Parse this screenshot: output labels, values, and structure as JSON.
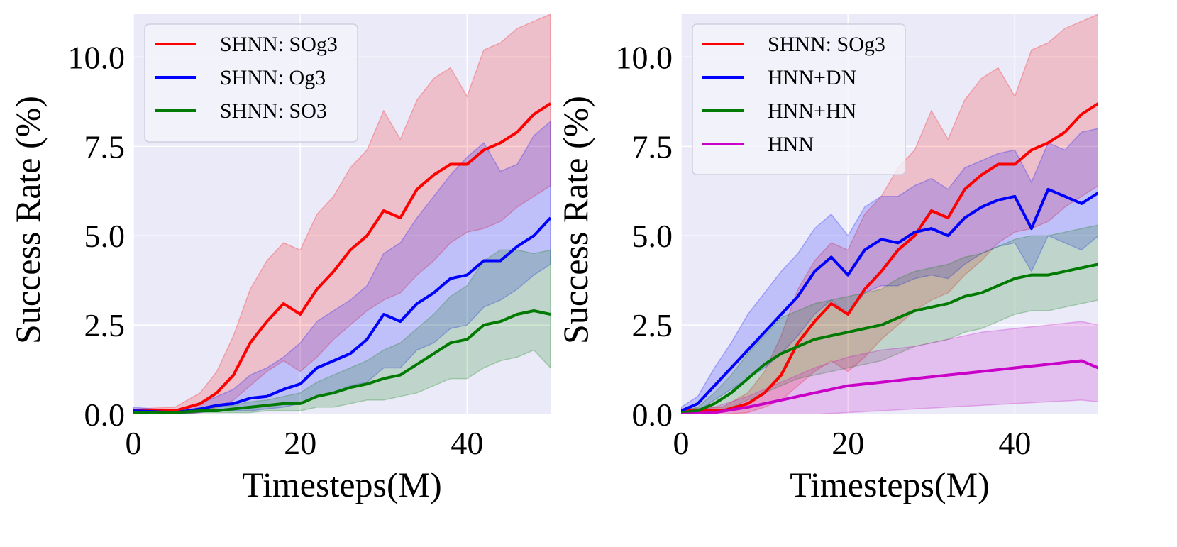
{
  "colors": {
    "plot_bg": "#eaeaf8",
    "grid": "#ffffff",
    "legend_bg": "#f4f4fb",
    "legend_border": "#cfcfe0",
    "red": "#ff0000",
    "blue": "#0000ff",
    "green": "#007a00",
    "magenta": "#c800c8"
  },
  "chart_data": [
    {
      "type": "line",
      "xlabel": "Timesteps(M)",
      "ylabel": "Success Rate (%)",
      "xlim": [
        0,
        50
      ],
      "ylim": [
        0,
        11.2
      ],
      "xticks": [
        0,
        20,
        40
      ],
      "xtick_labels": [
        "0",
        "20",
        "40"
      ],
      "yticks": [
        0,
        2.5,
        5,
        7.5,
        10
      ],
      "ytick_labels": [
        "0.0",
        "2.5",
        "5.0",
        "7.5",
        "10.0"
      ],
      "grid": true,
      "legend_position": "top-left",
      "series": [
        {
          "name": "SHNN: SOg3",
          "color": "#ff0000",
          "x": [
            0,
            5,
            8,
            10,
            12,
            14,
            16,
            18,
            20,
            22,
            24,
            26,
            28,
            30,
            32,
            34,
            36,
            38,
            40,
            42,
            44,
            46,
            48,
            50
          ],
          "mean": [
            0.1,
            0.1,
            0.3,
            0.6,
            1.1,
            2.0,
            2.6,
            3.1,
            2.8,
            3.5,
            4.0,
            4.6,
            5.0,
            5.7,
            5.5,
            6.3,
            6.7,
            7.0,
            7.0,
            7.4,
            7.6,
            7.9,
            8.4,
            8.7
          ],
          "upper": [
            0.15,
            0.2,
            0.6,
            1.2,
            2.2,
            3.5,
            4.3,
            4.8,
            4.6,
            5.6,
            6.1,
            6.9,
            7.4,
            8.5,
            7.7,
            8.8,
            9.4,
            9.7,
            8.9,
            10.2,
            10.4,
            10.8,
            11.0,
            11.2
          ],
          "lower": [
            0.05,
            0.0,
            0.05,
            0.2,
            0.4,
            0.8,
            1.2,
            1.5,
            1.2,
            1.6,
            2.1,
            2.5,
            2.9,
            3.2,
            3.4,
            3.9,
            4.3,
            4.8,
            5.1,
            5.2,
            5.4,
            5.8,
            6.1,
            6.4
          ]
        },
        {
          "name": "SHNN: Og3",
          "color": "#0000ff",
          "x": [
            0,
            5,
            8,
            10,
            12,
            14,
            16,
            18,
            20,
            22,
            24,
            26,
            28,
            30,
            32,
            34,
            36,
            38,
            40,
            42,
            44,
            46,
            48,
            50
          ],
          "mean": [
            0.1,
            0.05,
            0.15,
            0.25,
            0.3,
            0.45,
            0.5,
            0.7,
            0.85,
            1.3,
            1.5,
            1.7,
            2.1,
            2.8,
            2.6,
            3.1,
            3.4,
            3.8,
            3.9,
            4.3,
            4.3,
            4.7,
            5.0,
            5.5
          ],
          "upper": [
            0.2,
            0.1,
            0.3,
            0.5,
            0.7,
            1.1,
            1.3,
            1.6,
            2.0,
            2.6,
            2.9,
            3.2,
            3.6,
            4.5,
            4.8,
            5.5,
            6.1,
            6.7,
            7.2,
            7.6,
            6.8,
            7.0,
            7.8,
            8.2
          ],
          "lower": [
            0.0,
            0.0,
            0.05,
            0.1,
            0.1,
            0.1,
            0.15,
            0.2,
            0.3,
            0.5,
            0.6,
            0.8,
            0.9,
            1.3,
            1.3,
            1.8,
            2.0,
            2.4,
            2.5,
            3.0,
            3.2,
            3.5,
            3.9,
            4.2
          ]
        },
        {
          "name": "SHNN: SO3",
          "color": "#007a00",
          "x": [
            0,
            5,
            8,
            10,
            12,
            14,
            16,
            18,
            20,
            22,
            24,
            26,
            28,
            30,
            32,
            34,
            36,
            38,
            40,
            42,
            44,
            46,
            48,
            50
          ],
          "mean": [
            0.05,
            0.05,
            0.1,
            0.1,
            0.15,
            0.2,
            0.25,
            0.3,
            0.3,
            0.5,
            0.6,
            0.75,
            0.85,
            1.0,
            1.1,
            1.4,
            1.7,
            2.0,
            2.1,
            2.5,
            2.6,
            2.8,
            2.9,
            2.8
          ],
          "upper": [
            0.1,
            0.1,
            0.15,
            0.2,
            0.25,
            0.35,
            0.4,
            0.5,
            0.6,
            0.9,
            1.1,
            1.3,
            1.5,
            1.8,
            2.0,
            2.4,
            2.8,
            3.3,
            3.6,
            4.3,
            4.6,
            4.6,
            4.5,
            4.6
          ],
          "lower": [
            0.0,
            0.0,
            0.05,
            0.05,
            0.05,
            0.05,
            0.1,
            0.1,
            0.1,
            0.2,
            0.2,
            0.3,
            0.4,
            0.4,
            0.5,
            0.6,
            0.8,
            1.0,
            1.0,
            1.3,
            1.5,
            1.6,
            1.8,
            1.3
          ]
        }
      ]
    },
    {
      "type": "line",
      "xlabel": "Timesteps(M)",
      "ylabel": "Success Rate (%)",
      "xlim": [
        0,
        50
      ],
      "ylim": [
        0,
        11.2
      ],
      "xticks": [
        0,
        20,
        40
      ],
      "xtick_labels": [
        "0",
        "20",
        "40"
      ],
      "yticks": [
        0,
        2.5,
        5,
        7.5,
        10
      ],
      "ytick_labels": [
        "0.0",
        "2.5",
        "5.0",
        "7.5",
        "10.0"
      ],
      "grid": true,
      "legend_position": "top-left",
      "series": [
        {
          "name": "SHNN: SOg3",
          "color": "#ff0000",
          "x": [
            0,
            5,
            8,
            10,
            12,
            14,
            16,
            18,
            20,
            22,
            24,
            26,
            28,
            30,
            32,
            34,
            36,
            38,
            40,
            42,
            44,
            46,
            48,
            50
          ],
          "mean": [
            0.1,
            0.1,
            0.3,
            0.6,
            1.1,
            2.0,
            2.6,
            3.1,
            2.8,
            3.5,
            4.0,
            4.6,
            5.0,
            5.7,
            5.5,
            6.3,
            6.7,
            7.0,
            7.0,
            7.4,
            7.6,
            7.9,
            8.4,
            8.7
          ],
          "upper": [
            0.15,
            0.2,
            0.6,
            1.2,
            2.2,
            3.5,
            4.3,
            4.8,
            4.6,
            5.6,
            6.1,
            6.9,
            7.4,
            8.5,
            7.7,
            8.8,
            9.4,
            9.7,
            8.9,
            10.2,
            10.4,
            10.8,
            11.0,
            11.2
          ],
          "lower": [
            0.05,
            0.0,
            0.05,
            0.2,
            0.4,
            0.8,
            1.2,
            1.5,
            1.2,
            1.6,
            2.1,
            2.5,
            2.9,
            3.2,
            3.4,
            3.9,
            4.3,
            4.8,
            5.1,
            5.2,
            5.4,
            5.8,
            6.1,
            6.4
          ]
        },
        {
          "name": "HNN+DN",
          "color": "#0000ff",
          "x": [
            0,
            2,
            4,
            6,
            8,
            10,
            12,
            14,
            16,
            18,
            20,
            22,
            24,
            26,
            28,
            30,
            32,
            34,
            36,
            38,
            40,
            42,
            44,
            46,
            48,
            50
          ],
          "mean": [
            0.1,
            0.3,
            0.8,
            1.3,
            1.8,
            2.3,
            2.8,
            3.3,
            4.0,
            4.4,
            3.9,
            4.6,
            4.9,
            4.8,
            5.1,
            5.2,
            5.0,
            5.5,
            5.8,
            6.0,
            6.1,
            5.2,
            6.3,
            6.1,
            5.9,
            6.2
          ],
          "upper": [
            0.2,
            0.5,
            1.3,
            2.0,
            2.8,
            3.4,
            4.0,
            4.5,
            5.2,
            5.6,
            5.0,
            5.8,
            6.1,
            6.1,
            6.4,
            6.6,
            6.3,
            6.9,
            7.1,
            7.3,
            7.4,
            6.5,
            7.6,
            7.4,
            7.9,
            8.0
          ],
          "lower": [
            0.05,
            0.1,
            0.4,
            0.7,
            1.0,
            1.3,
            1.7,
            2.2,
            2.8,
            3.2,
            2.8,
            3.4,
            3.6,
            3.6,
            3.8,
            3.9,
            3.8,
            4.2,
            4.5,
            4.7,
            4.8,
            4.0,
            5.0,
            4.8,
            4.6,
            5.0
          ]
        },
        {
          "name": "HNN+HN",
          "color": "#007a00",
          "x": [
            0,
            2,
            4,
            6,
            8,
            10,
            12,
            14,
            16,
            18,
            20,
            22,
            24,
            26,
            28,
            30,
            32,
            34,
            36,
            38,
            40,
            42,
            44,
            46,
            48,
            50
          ],
          "mean": [
            0.05,
            0.1,
            0.3,
            0.6,
            1.0,
            1.4,
            1.7,
            1.9,
            2.1,
            2.2,
            2.3,
            2.4,
            2.5,
            2.7,
            2.9,
            3.0,
            3.1,
            3.3,
            3.4,
            3.6,
            3.8,
            3.9,
            3.9,
            4.0,
            4.1,
            4.2
          ],
          "upper": [
            0.1,
            0.2,
            0.6,
            1.1,
            1.7,
            2.2,
            2.7,
            2.9,
            3.1,
            3.2,
            3.3,
            3.4,
            3.5,
            3.8,
            4.0,
            4.1,
            4.2,
            4.4,
            4.5,
            4.7,
            4.9,
            5.0,
            5.0,
            5.1,
            5.2,
            5.3
          ],
          "lower": [
            0.0,
            0.05,
            0.1,
            0.2,
            0.4,
            0.6,
            0.8,
            1.0,
            1.1,
            1.2,
            1.3,
            1.4,
            1.5,
            1.7,
            1.9,
            2.0,
            2.1,
            2.3,
            2.4,
            2.6,
            2.8,
            2.9,
            2.9,
            3.0,
            3.1,
            3.2
          ]
        },
        {
          "name": "HNN",
          "color": "#c800c8",
          "x": [
            0,
            4,
            8,
            12,
            16,
            20,
            24,
            28,
            32,
            36,
            40,
            44,
            48,
            50
          ],
          "mean": [
            0.0,
            0.05,
            0.2,
            0.4,
            0.6,
            0.8,
            0.9,
            1.0,
            1.1,
            1.2,
            1.3,
            1.4,
            1.5,
            1.3
          ],
          "upper": [
            0.05,
            0.2,
            0.5,
            0.9,
            1.3,
            1.6,
            1.8,
            1.9,
            2.1,
            2.3,
            2.4,
            2.5,
            2.6,
            2.5
          ],
          "lower": [
            0.0,
            0.0,
            0.0,
            0.0,
            0.0,
            0.05,
            0.1,
            0.15,
            0.2,
            0.25,
            0.3,
            0.35,
            0.4,
            0.35
          ]
        }
      ]
    }
  ]
}
